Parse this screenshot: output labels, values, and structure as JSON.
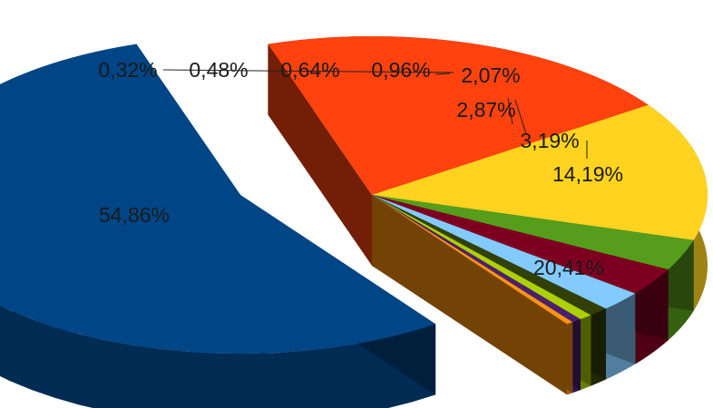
{
  "chart_data": {
    "type": "pie",
    "variant": "exploded-3d",
    "title": "",
    "legend": "none",
    "slices": [
      {
        "label": "54,86%",
        "value": 54.86,
        "color": "#004586"
      },
      {
        "label": "20,41%",
        "value": 20.41,
        "color": "#ff420e"
      },
      {
        "label": "14,19%",
        "value": 14.19,
        "color": "#ffd320"
      },
      {
        "label": "3,19%",
        "value": 3.19,
        "color": "#579d1c"
      },
      {
        "label": "2,87%",
        "value": 2.87,
        "color": "#7e0021"
      },
      {
        "label": "2,07%",
        "value": 2.07,
        "color": "#83caff"
      },
      {
        "label": "0,96%",
        "value": 0.96,
        "color": "#314004"
      },
      {
        "label": "0,64%",
        "value": 0.64,
        "color": "#aecf00"
      },
      {
        "label": "0,48%",
        "value": 0.48,
        "color": "#4b1f6f"
      },
      {
        "label": "0,32%",
        "value": 0.32,
        "color": "#ff950e"
      }
    ]
  }
}
